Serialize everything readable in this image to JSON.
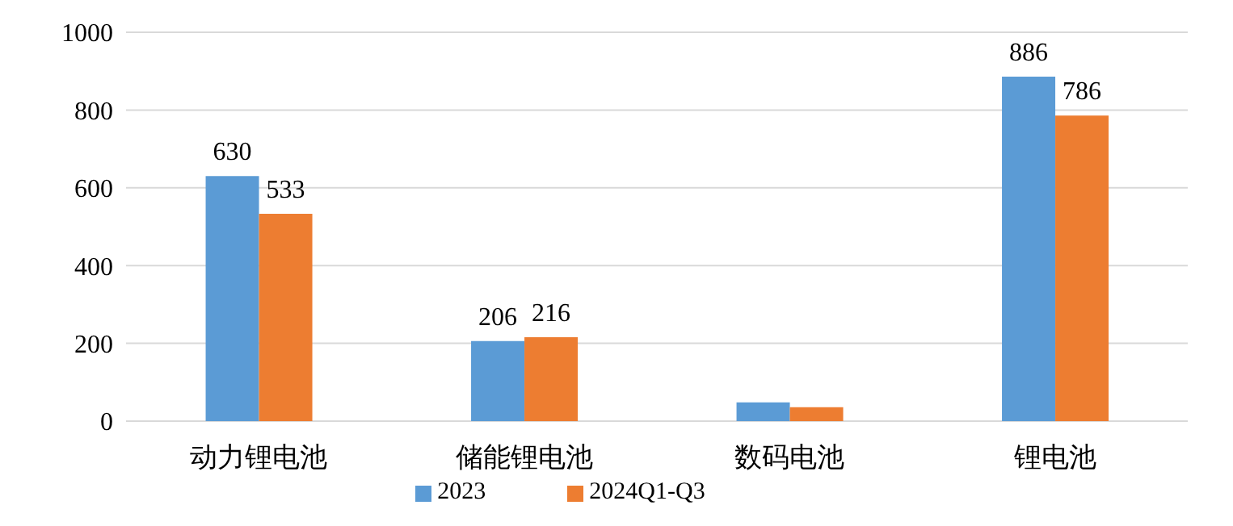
{
  "chart_data": {
    "type": "bar",
    "categories": [
      "动力锂电池",
      "储能锂电池",
      "数码电池",
      "锂电池"
    ],
    "series": [
      {
        "name": "2023",
        "color": "#5b9bd5",
        "values": [
          630,
          206,
          48,
          886
        ],
        "value_labels": [
          "630",
          "206",
          null,
          "886"
        ]
      },
      {
        "name": "2024Q1-Q3",
        "color": "#ed7d31",
        "values": [
          533,
          216,
          36,
          786
        ],
        "value_labels": [
          "533",
          "216",
          null,
          "786"
        ]
      }
    ],
    "ylim": [
      0,
      1000
    ],
    "yticks": [
      0,
      200,
      400,
      600,
      800,
      1000
    ],
    "grid": "y",
    "legend": "bottom"
  }
}
